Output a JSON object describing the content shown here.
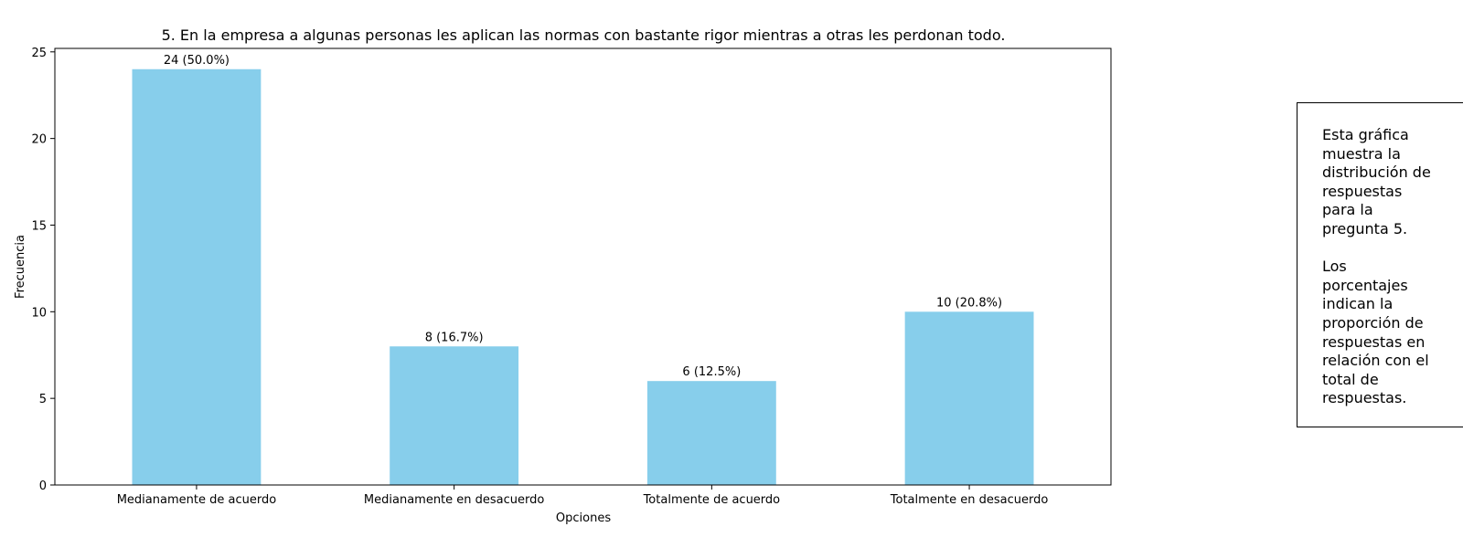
{
  "chart_data": {
    "type": "bar",
    "title": "5. En la empresa a algunas personas les aplican las normas con bastante rigor mientras a otras les perdonan todo.",
    "xlabel": "Opciones",
    "ylabel": "Frecuencia",
    "categories": [
      "Medianamente de acuerdo",
      "Medianamente en desacuerdo",
      "Totalmente de acuerdo",
      "Totalmente en desacuerdo"
    ],
    "values": [
      24,
      8,
      6,
      10
    ],
    "data_labels": [
      "24 (50.0%)",
      "8 (16.7%)",
      "6 (12.5%)",
      "10 (20.8%)"
    ],
    "ylim": [
      0,
      25.2
    ],
    "yticks": [
      0,
      5,
      10,
      15,
      20,
      25
    ],
    "grid": false,
    "bar_color": "#87CEEB",
    "legend": "none"
  },
  "note": {
    "text": "Esta gráfica\nmuestra la\ndistribución de\nrespuestas\npara la\npregunta 5.\n\nLos\nporcentajes\nindican la\nproporción de\nrespuestas en\nrelación con el\ntotal de\nrespuestas."
  }
}
